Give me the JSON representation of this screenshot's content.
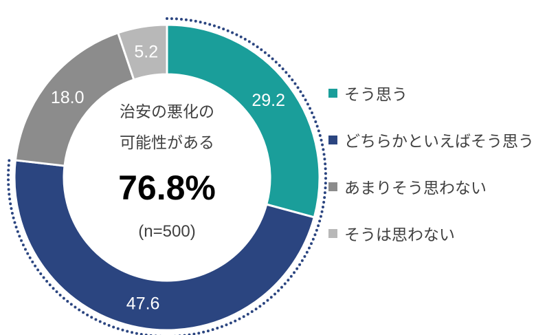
{
  "chart_data": {
    "type": "pie",
    "categories": [
      "そう思う",
      "どちらかといえばそう思う",
      "あまりそう思わない",
      "そうは思わない"
    ],
    "values": [
      29.2,
      47.6,
      18.0,
      5.2
    ],
    "value_labels": [
      "29.2",
      "47.6",
      "18.0",
      "5.2"
    ],
    "colors": [
      "#1a9e9a",
      "#2b4580",
      "#8c8c8c",
      "#b8b8b8"
    ],
    "center_text": {
      "line1": "治安の悪化の",
      "line2": "可能性がある",
      "total": "76.8%",
      "n": "(n=500)"
    },
    "legend_placement": "right",
    "start_angle": "12 o'clock, clockwise",
    "highlight_dotted_arc": [
      "そう思う",
      "どちらかといえばそう思う"
    ]
  }
}
